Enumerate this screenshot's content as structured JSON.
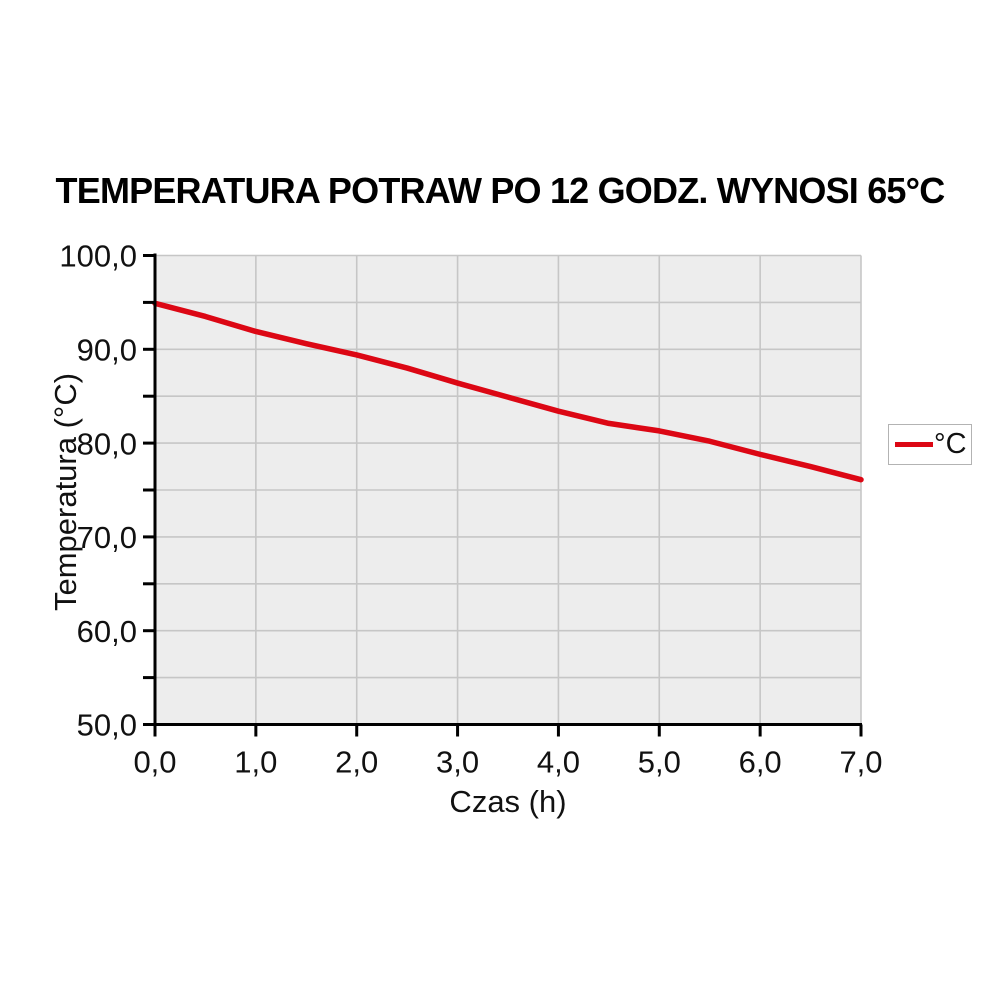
{
  "title": "TEMPERATURA POTRAW PO 12 GODZ. WYNOSI 65°C",
  "chart_data": {
    "type": "line",
    "title": "TEMPERATURA POTRAW PO 12 GODZ. WYNOSI 65°C",
    "xlabel": "Czas (h)",
    "ylabel": "Temperatura (°C)",
    "xlim": [
      0,
      7
    ],
    "ylim": [
      50,
      100
    ],
    "grid": true,
    "plot_bg_color": "#ededed",
    "grid_color": "#c6c6c6",
    "axis_color": "#000000",
    "tick_label_color": "#111111",
    "x_ticks": [
      0,
      1,
      2,
      3,
      4,
      5,
      6,
      7
    ],
    "x_tick_labels": [
      "0,0",
      "1,0",
      "2,0",
      "3,0",
      "4,0",
      "5,0",
      "6,0",
      "7,0"
    ],
    "y_ticks": [
      50,
      60,
      70,
      80,
      90,
      100
    ],
    "y_tick_labels": [
      "50,0",
      "60,0",
      "70,0",
      "80,0",
      "90,0",
      "100,0"
    ],
    "y_minor_ticks": [
      55,
      65,
      75,
      85,
      95
    ],
    "legend": {
      "position": "right",
      "entries": [
        {
          "label": "°C",
          "color": "#dc0714"
        }
      ]
    },
    "series": [
      {
        "name": "°C",
        "color": "#dc0714",
        "x": [
          0,
          0.5,
          1,
          1.5,
          2,
          2.5,
          3,
          3.5,
          4,
          4.5,
          5,
          5.5,
          6,
          6.5,
          7
        ],
        "values": [
          94.9,
          93.5,
          91.9,
          90.6,
          89.4,
          88.0,
          86.4,
          84.9,
          83.4,
          82.1,
          81.3,
          80.2,
          78.8,
          77.5,
          76.1
        ]
      }
    ]
  }
}
